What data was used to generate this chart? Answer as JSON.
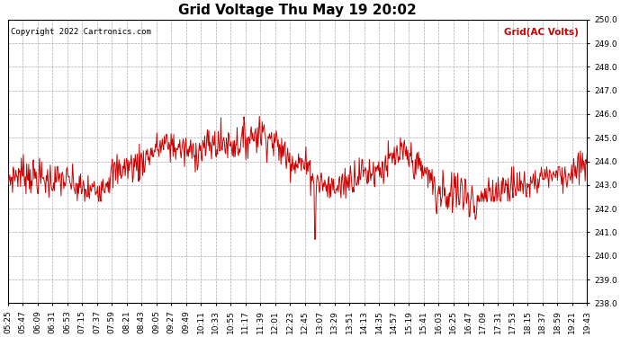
{
  "title": "Grid Voltage Thu May 19 20:02",
  "copyright": "Copyright 2022 Cartronics.com",
  "legend_label": "Grid(AC Volts)",
  "ylim": [
    238.0,
    250.0
  ],
  "line_color": "#cc0000",
  "background_color": "#ffffff",
  "grid_color": "#aaaaaa",
  "title_fontsize": 11,
  "tick_fontsize": 6.5,
  "x_labels": [
    "05:25",
    "05:47",
    "06:09",
    "06:31",
    "06:53",
    "07:15",
    "07:37",
    "07:59",
    "08:21",
    "08:43",
    "09:05",
    "09:27",
    "09:49",
    "10:11",
    "10:33",
    "10:55",
    "11:17",
    "11:39",
    "12:01",
    "12:23",
    "12:45",
    "13:07",
    "13:29",
    "13:51",
    "14:13",
    "14:35",
    "14:57",
    "15:19",
    "15:41",
    "16:03",
    "16:25",
    "16:47",
    "17:09",
    "17:31",
    "17:53",
    "18:15",
    "18:37",
    "18:59",
    "19:21",
    "19:43"
  ],
  "n_points": 860,
  "seed": 7
}
